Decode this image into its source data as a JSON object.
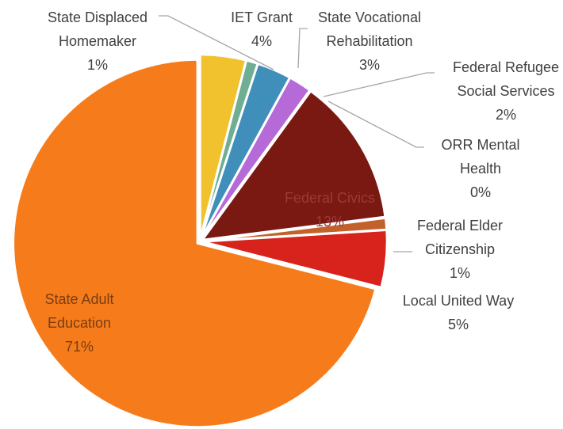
{
  "chart_data": {
    "type": "pie",
    "categories": [
      "IET Grant",
      "State Displaced Homemaker",
      "State Vocational Rehabilitation",
      "Federal Refugee Social Services",
      "ORR Mental Health",
      "Federal Civics",
      "Federal Elder Citizenship",
      "Local United Way",
      "State Adult Education"
    ],
    "values": [
      4,
      1,
      3,
      2,
      0,
      13,
      1,
      5,
      71
    ],
    "value_labels": [
      "4%",
      "1%",
      "3%",
      "2%",
      "0%",
      "13%",
      "1%",
      "5%",
      "71%"
    ],
    "colors": [
      "#f2c12e",
      "#6fae93",
      "#3f8fba",
      "#b56ad8",
      "#9e9e9e",
      "#7a1812",
      "#c2612b",
      "#d8221c",
      "#f67c1b"
    ]
  }
}
